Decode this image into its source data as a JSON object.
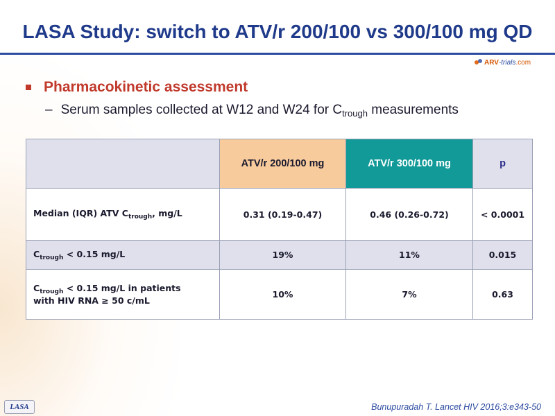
{
  "slide": {
    "title": "LASA Study: switch to ATV/r 200/100 vs 300/100 mg QD",
    "logo": {
      "part1": "ARV",
      "part2": "-trials",
      "part3": ".com"
    },
    "bullet": "Pharmacokinetic assessment",
    "sub_bullet": {
      "dash": "–",
      "before": "Serum samples collected at W12 and W24 for C",
      "subscript": "trough",
      "after": " measurements"
    },
    "footer_tag": "LASA",
    "reference": "Bunupuradah T. Lancet HIV 2016;3:e343-50"
  },
  "table": {
    "headers": [
      "",
      "ATV/r 200/100 mg",
      "ATV/r 300/100 mg",
      "p"
    ],
    "rows": [
      {
        "label_pre": "Median (IQR) ATV C",
        "label_sub": "trough",
        "label_post": ",  mg/L",
        "label_post2": "",
        "values": [
          "0.31 (0.19-0.47)",
          "0.46 (0.26-0.72)",
          "< 0.0001"
        ]
      },
      {
        "label_pre": "C",
        "label_sub": "trough",
        "label_post": "  < 0.15 mg/L",
        "label_post2": "",
        "values": [
          "19%",
          "11%",
          "0.015"
        ]
      },
      {
        "label_pre": "C",
        "label_sub": "trough",
        "label_post": "  < 0.15 mg/L in patients",
        "label_post2": "with HIV RNA ≥ 50 c/mL",
        "values": [
          "10%",
          "7%",
          "0.63"
        ]
      }
    ]
  },
  "colors": {
    "title": "#1f3a8a",
    "bullet": "#c0392b",
    "header_200": "#f8cb9c",
    "header_300": "#119a98",
    "header_grey": "#dfe0ec"
  }
}
